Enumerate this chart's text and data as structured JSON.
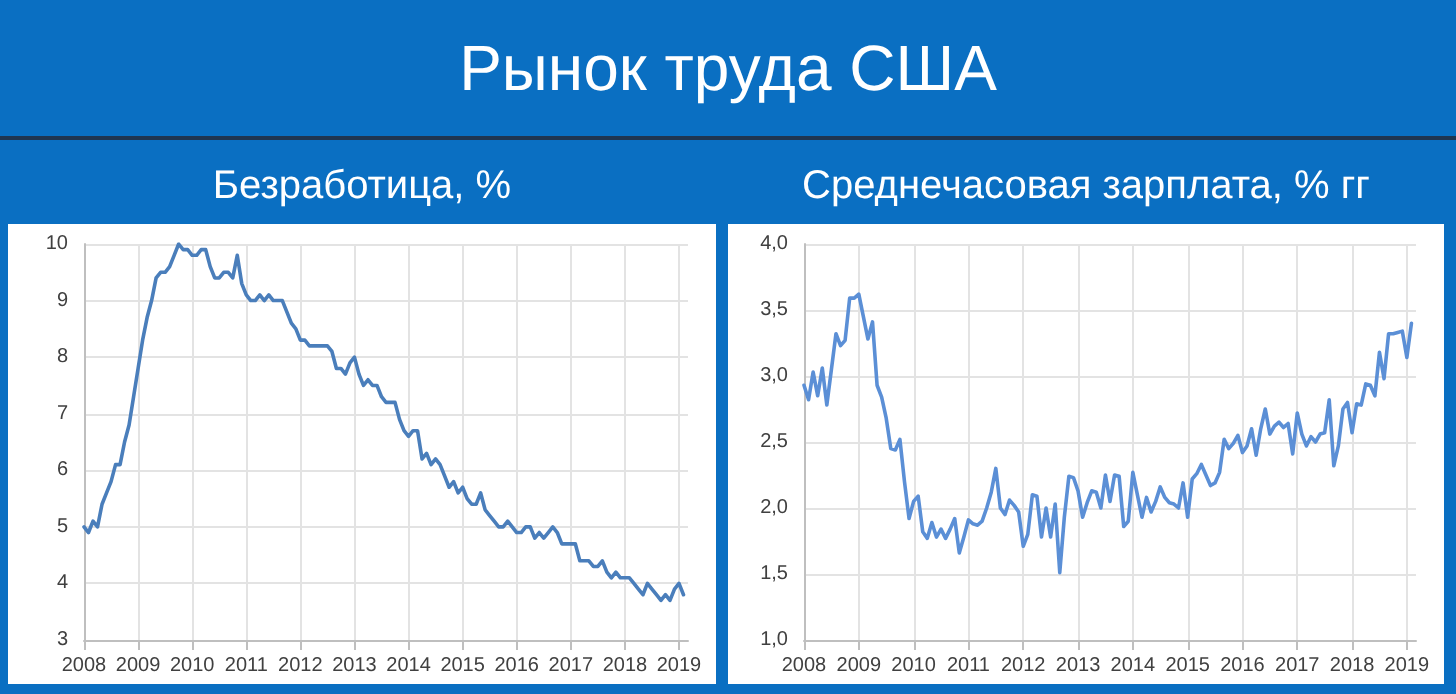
{
  "chart_data": [
    {
      "type": "line",
      "title": "Безработица, %",
      "annotations": [
        "Рынок труда США"
      ],
      "x": [
        "2008-01",
        "2008-02",
        "2008-03",
        "2008-04",
        "2008-05",
        "2008-06",
        "2008-07",
        "2008-08",
        "2008-09",
        "2008-10",
        "2008-11",
        "2008-12",
        "2009-01",
        "2009-02",
        "2009-03",
        "2009-04",
        "2009-05",
        "2009-06",
        "2009-07",
        "2009-08",
        "2009-09",
        "2009-10",
        "2009-11",
        "2009-12",
        "2010-01",
        "2010-02",
        "2010-03",
        "2010-04",
        "2010-05",
        "2010-06",
        "2010-07",
        "2010-08",
        "2010-09",
        "2010-10",
        "2010-11",
        "2010-12",
        "2011-01",
        "2011-02",
        "2011-03",
        "2011-04",
        "2011-05",
        "2011-06",
        "2011-07",
        "2011-08",
        "2011-09",
        "2011-10",
        "2011-11",
        "2011-12",
        "2012-01",
        "2012-02",
        "2012-03",
        "2012-04",
        "2012-05",
        "2012-06",
        "2012-07",
        "2012-08",
        "2012-09",
        "2012-10",
        "2012-11",
        "2012-12",
        "2013-01",
        "2013-02",
        "2013-03",
        "2013-04",
        "2013-05",
        "2013-06",
        "2013-07",
        "2013-08",
        "2013-09",
        "2013-10",
        "2013-11",
        "2013-12",
        "2014-01",
        "2014-02",
        "2014-03",
        "2014-04",
        "2014-05",
        "2014-06",
        "2014-07",
        "2014-08",
        "2014-09",
        "2014-10",
        "2014-11",
        "2014-12",
        "2015-01",
        "2015-02",
        "2015-03",
        "2015-04",
        "2015-05",
        "2015-06",
        "2015-07",
        "2015-08",
        "2015-09",
        "2015-10",
        "2015-11",
        "2015-12",
        "2016-01",
        "2016-02",
        "2016-03",
        "2016-04",
        "2016-05",
        "2016-06",
        "2016-07",
        "2016-08",
        "2016-09",
        "2016-10",
        "2016-11",
        "2016-12",
        "2017-01",
        "2017-02",
        "2017-03",
        "2017-04",
        "2017-05",
        "2017-06",
        "2017-07",
        "2017-08",
        "2017-09",
        "2017-10",
        "2017-11",
        "2017-12",
        "2018-01",
        "2018-02",
        "2018-03",
        "2018-04",
        "2018-05",
        "2018-06",
        "2018-07",
        "2018-08",
        "2018-09",
        "2018-10",
        "2018-11",
        "2018-12",
        "2019-01",
        "2019-02"
      ],
      "series": [
        {
          "color": "#4a7ebb",
          "values": [
            5.0,
            4.9,
            5.1,
            5.0,
            5.4,
            5.6,
            5.8,
            6.1,
            6.1,
            6.5,
            6.8,
            7.3,
            7.8,
            8.3,
            8.7,
            9.0,
            9.4,
            9.5,
            9.5,
            9.6,
            9.8,
            10.0,
            9.9,
            9.9,
            9.8,
            9.8,
            9.9,
            9.9,
            9.6,
            9.4,
            9.4,
            9.5,
            9.5,
            9.4,
            9.8,
            9.3,
            9.1,
            9.0,
            9.0,
            9.1,
            9.0,
            9.1,
            9.0,
            9.0,
            9.0,
            8.8,
            8.6,
            8.5,
            8.3,
            8.3,
            8.2,
            8.2,
            8.2,
            8.2,
            8.2,
            8.1,
            7.8,
            7.8,
            7.7,
            7.9,
            8.0,
            7.7,
            7.5,
            7.6,
            7.5,
            7.5,
            7.3,
            7.2,
            7.2,
            7.2,
            6.9,
            6.7,
            6.6,
            6.7,
            6.7,
            6.2,
            6.3,
            6.1,
            6.2,
            6.1,
            5.9,
            5.7,
            5.8,
            5.6,
            5.7,
            5.5,
            5.4,
            5.4,
            5.6,
            5.3,
            5.2,
            5.1,
            5.0,
            5.0,
            5.1,
            5.0,
            4.9,
            4.9,
            5.0,
            5.0,
            4.8,
            4.9,
            4.8,
            4.9,
            5.0,
            4.9,
            4.7,
            4.7,
            4.7,
            4.7,
            4.4,
            4.4,
            4.4,
            4.3,
            4.3,
            4.4,
            4.2,
            4.1,
            4.2,
            4.1,
            4.1,
            4.1,
            4.0,
            3.9,
            3.8,
            4.0,
            3.9,
            3.8,
            3.7,
            3.8,
            3.7,
            3.9,
            4.0,
            3.8
          ]
        }
      ],
      "xlim": [
        "2008-01",
        "2019-03"
      ],
      "xticks": [
        {
          "value": "2008-01",
          "label": "2008"
        },
        {
          "value": "2009-01",
          "label": "2009"
        },
        {
          "value": "2010-01",
          "label": "2010"
        },
        {
          "value": "2011-01",
          "label": "2011"
        },
        {
          "value": "2012-01",
          "label": "2012"
        },
        {
          "value": "2013-01",
          "label": "2013"
        },
        {
          "value": "2014-01",
          "label": "2014"
        },
        {
          "value": "2015-01",
          "label": "2015"
        },
        {
          "value": "2016-01",
          "label": "2016"
        },
        {
          "value": "2017-01",
          "label": "2017"
        },
        {
          "value": "2018-01",
          "label": "2018"
        },
        {
          "value": "2019-01",
          "label": "2019"
        }
      ],
      "ylim": [
        3,
        10
      ],
      "yticks": [
        3,
        4,
        5,
        6,
        7,
        8,
        9,
        10
      ],
      "grid": true,
      "marker": "none",
      "line_style": "solid"
    },
    {
      "type": "line",
      "title": "Среднечасовая зарплата, % гг",
      "x": [
        "2008-01",
        "2008-02",
        "2008-03",
        "2008-04",
        "2008-05",
        "2008-06",
        "2008-07",
        "2008-08",
        "2008-09",
        "2008-10",
        "2008-11",
        "2008-12",
        "2009-01",
        "2009-02",
        "2009-03",
        "2009-04",
        "2009-05",
        "2009-06",
        "2009-07",
        "2009-08",
        "2009-09",
        "2009-10",
        "2009-11",
        "2009-12",
        "2010-01",
        "2010-02",
        "2010-03",
        "2010-04",
        "2010-05",
        "2010-06",
        "2010-07",
        "2010-08",
        "2010-09",
        "2010-10",
        "2010-11",
        "2010-12",
        "2011-01",
        "2011-02",
        "2011-03",
        "2011-04",
        "2011-05",
        "2011-06",
        "2011-07",
        "2011-08",
        "2011-09",
        "2011-10",
        "2011-11",
        "2011-12",
        "2012-01",
        "2012-02",
        "2012-03",
        "2012-04",
        "2012-05",
        "2012-06",
        "2012-07",
        "2012-08",
        "2012-09",
        "2012-10",
        "2012-11",
        "2012-12",
        "2013-01",
        "2013-02",
        "2013-03",
        "2013-04",
        "2013-05",
        "2013-06",
        "2013-07",
        "2013-08",
        "2013-09",
        "2013-10",
        "2013-11",
        "2013-12",
        "2014-01",
        "2014-02",
        "2014-03",
        "2014-04",
        "2014-05",
        "2014-06",
        "2014-07",
        "2014-08",
        "2014-09",
        "2014-10",
        "2014-11",
        "2014-12",
        "2015-01",
        "2015-02",
        "2015-03",
        "2015-04",
        "2015-05",
        "2015-06",
        "2015-07",
        "2015-08",
        "2015-09",
        "2015-10",
        "2015-11",
        "2015-12",
        "2016-01",
        "2016-02",
        "2016-03",
        "2016-04",
        "2016-05",
        "2016-06",
        "2016-07",
        "2016-08",
        "2016-09",
        "2016-10",
        "2016-11",
        "2016-12",
        "2017-01",
        "2017-02",
        "2017-03",
        "2017-04",
        "2017-05",
        "2017-06",
        "2017-07",
        "2017-08",
        "2017-09",
        "2017-10",
        "2017-11",
        "2017-12",
        "2018-01",
        "2018-02",
        "2018-03",
        "2018-04",
        "2018-05",
        "2018-06",
        "2018-07",
        "2018-08",
        "2018-09",
        "2018-10",
        "2018-11",
        "2018-12",
        "2019-01",
        "2019-02"
      ],
      "series": [
        {
          "color": "#5b8fd6",
          "values": [
            2.93,
            2.82,
            3.03,
            2.85,
            3.06,
            2.78,
            3.05,
            3.32,
            3.23,
            3.27,
            3.59,
            3.59,
            3.62,
            3.45,
            3.28,
            3.41,
            2.93,
            2.84,
            2.68,
            2.45,
            2.44,
            2.52,
            2.2,
            1.92,
            2.05,
            2.09,
            1.82,
            1.77,
            1.89,
            1.78,
            1.84,
            1.77,
            1.84,
            1.92,
            1.66,
            1.78,
            1.91,
            1.88,
            1.87,
            1.9,
            2.0,
            2.12,
            2.3,
            2.0,
            1.95,
            2.06,
            2.02,
            1.97,
            1.71,
            1.8,
            2.1,
            2.09,
            1.78,
            2.0,
            1.78,
            2.03,
            1.51,
            1.93,
            2.24,
            2.23,
            2.13,
            1.93,
            2.04,
            2.13,
            2.12,
            2.0,
            2.25,
            2.05,
            2.25,
            2.24,
            1.86,
            1.9,
            2.27,
            2.1,
            1.93,
            2.08,
            1.97,
            2.05,
            2.16,
            2.08,
            2.04,
            2.03,
            2.0,
            2.19,
            1.93,
            2.22,
            2.26,
            2.33,
            2.25,
            2.17,
            2.19,
            2.27,
            2.52,
            2.45,
            2.49,
            2.55,
            2.42,
            2.47,
            2.6,
            2.4,
            2.6,
            2.75,
            2.56,
            2.62,
            2.65,
            2.61,
            2.64,
            2.41,
            2.72,
            2.56,
            2.47,
            2.54,
            2.5,
            2.56,
            2.57,
            2.82,
            2.32,
            2.47,
            2.75,
            2.8,
            2.57,
            2.79,
            2.78,
            2.94,
            2.93,
            2.85,
            3.18,
            2.98,
            3.32,
            3.32,
            3.33,
            3.34,
            3.14,
            3.4
          ]
        }
      ],
      "xlim": [
        "2008-01",
        "2019-03"
      ],
      "xticks": [
        {
          "value": "2008-01",
          "label": "2008"
        },
        {
          "value": "2009-01",
          "label": "2009"
        },
        {
          "value": "2010-01",
          "label": "2010"
        },
        {
          "value": "2011-01",
          "label": "2011"
        },
        {
          "value": "2012-01",
          "label": "2012"
        },
        {
          "value": "2013-01",
          "label": "2013"
        },
        {
          "value": "2014-01",
          "label": "2014"
        },
        {
          "value": "2015-01",
          "label": "2015"
        },
        {
          "value": "2016-01",
          "label": "2016"
        },
        {
          "value": "2017-01",
          "label": "2017"
        },
        {
          "value": "2018-01",
          "label": "2018"
        },
        {
          "value": "2019-01",
          "label": "2019"
        }
      ],
      "ylim": [
        1,
        4
      ],
      "yticks": [
        {
          "value": 1,
          "label": "1,0"
        },
        {
          "value": 1.5,
          "label": "1,5"
        },
        {
          "value": 2,
          "label": "2,0"
        },
        {
          "value": 2.5,
          "label": "2,5"
        },
        {
          "value": 3,
          "label": "3,0"
        },
        {
          "value": 3.5,
          "label": "3,5"
        },
        {
          "value": 4,
          "label": "4,0"
        }
      ],
      "grid": true,
      "marker": "none",
      "line_style": "solid"
    }
  ]
}
